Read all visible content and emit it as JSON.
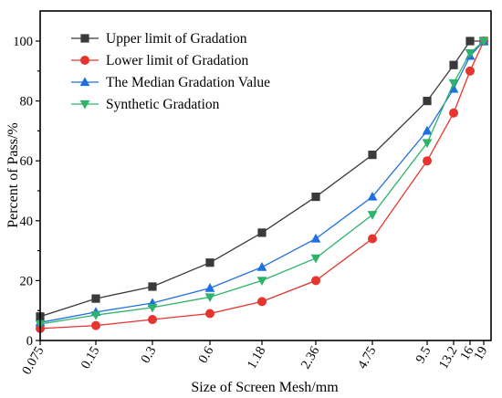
{
  "chart_data": {
    "type": "line",
    "xlabel": "Size of Screen Mesh/mm",
    "ylabel": "Percent of Pass/%",
    "x": [
      0.075,
      0.15,
      0.3,
      0.6,
      1.18,
      2.36,
      4.75,
      9.5,
      13.2,
      16,
      19
    ],
    "x_tick_labels": [
      "0.075",
      "0.15",
      "0.3",
      "0.6",
      "1.18",
      "2.36",
      "4.75",
      "9.5",
      "13.2",
      "16",
      "19"
    ],
    "ylim": [
      0,
      105
    ],
    "y_ticks": [
      0,
      20,
      40,
      60,
      80,
      100
    ],
    "grid": false,
    "legend_position": "top-left",
    "series": [
      {
        "name": "Upper limit of Gradation",
        "marker": "square",
        "color": "#3a3a3a",
        "values": [
          8,
          14,
          18,
          26,
          36,
          48,
          62,
          80,
          92,
          100,
          100
        ]
      },
      {
        "name": "Lower limit of Gradation",
        "marker": "circle",
        "color": "#e8342f",
        "values": [
          4,
          5,
          7,
          9,
          13,
          20,
          34,
          60,
          76,
          90,
          100
        ]
      },
      {
        "name": "The Median Gradation Value",
        "marker": "triangle-up",
        "color": "#1f6fe0",
        "values": [
          6,
          9.5,
          12.5,
          17.5,
          24.5,
          34,
          48,
          70,
          84,
          95,
          100
        ]
      },
      {
        "name": "Synthetic Gradation",
        "marker": "triangle-down",
        "color": "#2db46a",
        "values": [
          5.5,
          8.5,
          11,
          14.5,
          20,
          27.5,
          42,
          66,
          86,
          96,
          100
        ]
      }
    ]
  }
}
